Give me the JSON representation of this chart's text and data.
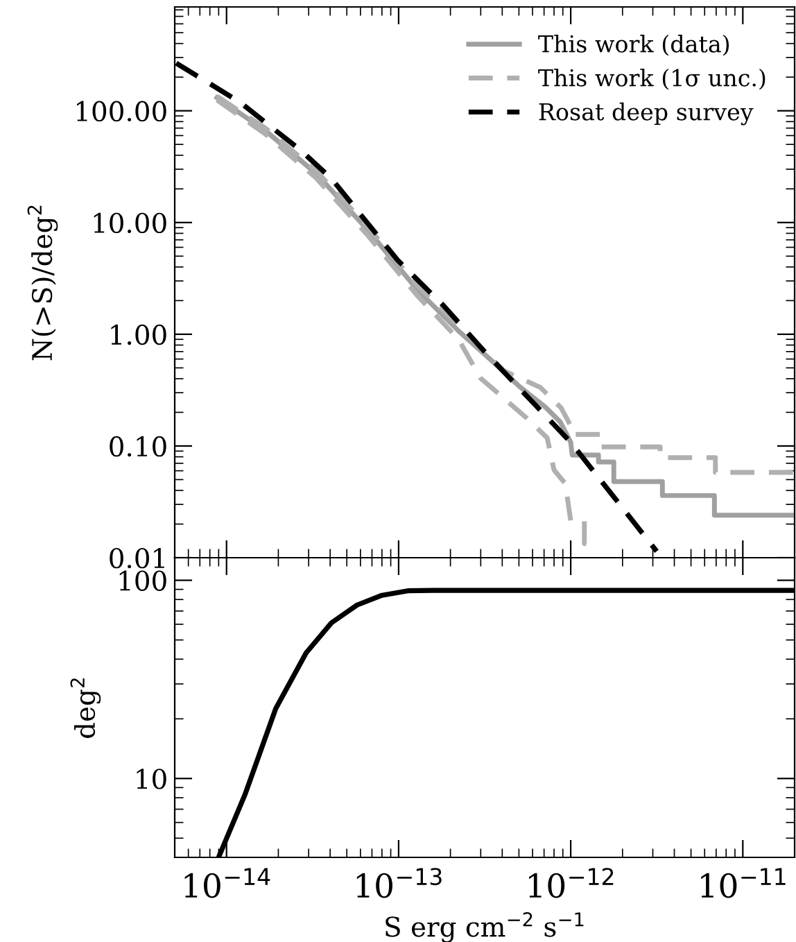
{
  "chart_data": [
    {
      "type": "line",
      "ylabel": "N(>S)/deg$^{2}$",
      "xlim": [
        5e-15,
        2e-11
      ],
      "ylim": [
        0.01,
        850
      ],
      "log": "xy",
      "tick_labels": "y",
      "xticks": [
        1e-14,
        1e-13,
        1e-12,
        1e-11
      ],
      "yticks": [
        {
          "value": 0.01,
          "label": "0.01"
        },
        {
          "value": 0.1,
          "label": "0.10"
        },
        {
          "value": 1,
          "label": "1.00"
        },
        {
          "value": 10,
          "label": "10.00"
        },
        {
          "value": 100,
          "label": "100.00"
        }
      ],
      "legend": "top right",
      "grid": false,
      "series": [
        {
          "name": "This work (data)",
          "color": "#a0a0a0",
          "line_style": "solid",
          "x": [
            8.8e-15,
            1.68e-14,
            3.32e-14,
            6.56e-14,
            1.29e-13,
            2.23e-13,
            3.35e-13,
            5.04e-13,
            7.1e-13,
            8.7e-13,
            1e-12,
            1.02e-12,
            1.45e-12,
            1.45e-12,
            1.78e-12,
            1.78e-12,
            3.41e-12,
            3.41e-12,
            6.84e-12,
            6.84e-12,
            2e-11
          ],
          "values": [
            131,
            66.5,
            27.4,
            8.7,
            2.48,
            1.07,
            0.61,
            0.34,
            0.224,
            0.164,
            0.108,
            0.083,
            0.083,
            0.072,
            0.072,
            0.048,
            0.048,
            0.036,
            0.036,
            0.024,
            0.024
          ]
        },
        {
          "name": "This work (1σ unc.)",
          "color": "#b0b0b0",
          "line_style": "dashed",
          "x": [
            8.8e-15,
            1.68e-14,
            3.32e-14,
            6.56e-14,
            1.29e-13,
            2.23e-13,
            4.1e-13,
            6.65e-13,
            8.8e-13,
            1.02e-12,
            1.02e-12,
            1.48e-12,
            1.48e-12,
            3.31e-12,
            3.31e-12,
            6.93e-12,
            6.93e-12,
            2e-11
          ],
          "values": [
            135,
            70,
            29,
            9.3,
            2.7,
            1.2,
            0.47,
            0.335,
            0.219,
            0.143,
            0.127,
            0.127,
            0.098,
            0.098,
            0.0786,
            0.0786,
            0.058,
            0.058
          ]
        },
        {
          "color": "#b0b0b0",
          "line_style": "dashed",
          "x": [
            8.8e-15,
            1.68e-14,
            3.32e-14,
            6.56e-14,
            1.29e-13,
            2.23e-13,
            2.99e-13,
            5.5e-13,
            7.3e-13,
            8e-13,
            9.3e-13,
            1e-12,
            1.2e-12,
            1.2e-12,
            1.31e-12
          ],
          "values": [
            125,
            62,
            25,
            7.8,
            2.2,
            0.9,
            0.405,
            0.18,
            0.118,
            0.061,
            0.046,
            0.0214,
            0.0214,
            0.0134,
            0.0134
          ]
        },
        {
          "name": "Rosat deep survey",
          "color": "#000000",
          "line_style": "dashed",
          "x": [
            5.1e-15,
            1.2e-14,
            2.71e-14,
            4.07e-14,
            9.87e-14,
            1.82e-13,
            3.13e-13,
            1e-12,
            3.16e-12
          ],
          "values": [
            267,
            119,
            44,
            24.7,
            4.6,
            1.81,
            0.71,
            0.108,
            0.0114
          ]
        }
      ]
    },
    {
      "type": "line",
      "ylabel": "deg$^{2}$",
      "xlabel": "S erg cm$^{−2}$ s$^{−1}$",
      "xlim": [
        5e-15,
        2e-11
      ],
      "ylim": [
        4,
        130
      ],
      "log": "xy",
      "grid": false,
      "xticks": [
        {
          "value": 1e-14,
          "label": "10$^{−14}$"
        },
        {
          "value": 1e-13,
          "label": "10$^{−13}$"
        },
        {
          "value": 1e-12,
          "label": "10$^{−12}$"
        },
        {
          "value": 1e-11,
          "label": "10$^{−11}$"
        }
      ],
      "yticks": [
        10,
        100
      ],
      "series": [
        {
          "color": "#000000",
          "line_style": "solid",
          "x": [
            9.1e-15,
            1.28e-14,
            1.93e-14,
            2.9e-14,
            4.07e-14,
            5.73e-14,
            8e-14,
            1.13e-13,
            1.58e-13,
            2e-11
          ],
          "values": [
            4.1,
            8.3,
            22.5,
            43,
            61,
            75,
            84,
            88.5,
            89,
            89
          ]
        }
      ]
    }
  ]
}
